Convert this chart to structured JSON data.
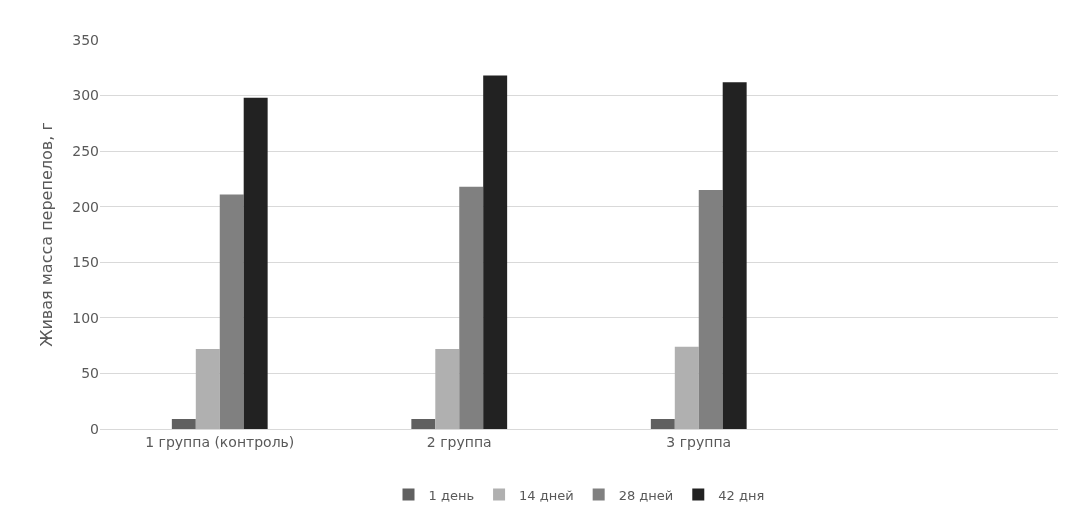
{
  "chart_data": {
    "type": "bar",
    "ylabel": "Живая масса перепелов, г",
    "categories": [
      "1 группа (контроль)",
      "2 группа",
      "3 группа",
      null
    ],
    "series": [
      {
        "name": "1 день",
        "color": "#606060",
        "values": [
          9,
          9,
          9,
          null
        ]
      },
      {
        "name": "14 дней",
        "color": "#b0b0b0",
        "values": [
          72,
          72,
          74,
          null
        ]
      },
      {
        "name": "28 дней",
        "color": "#808080",
        "values": [
          211,
          218,
          215,
          null
        ]
      },
      {
        "name": "42 дня",
        "color": "#222222",
        "values": [
          298,
          318,
          312,
          null
        ]
      }
    ],
    "ylim": [
      0,
      350
    ],
    "yticks": [
      0,
      50,
      100,
      150,
      200,
      250,
      300,
      350
    ],
    "grid": "y",
    "legend": "bottom"
  }
}
